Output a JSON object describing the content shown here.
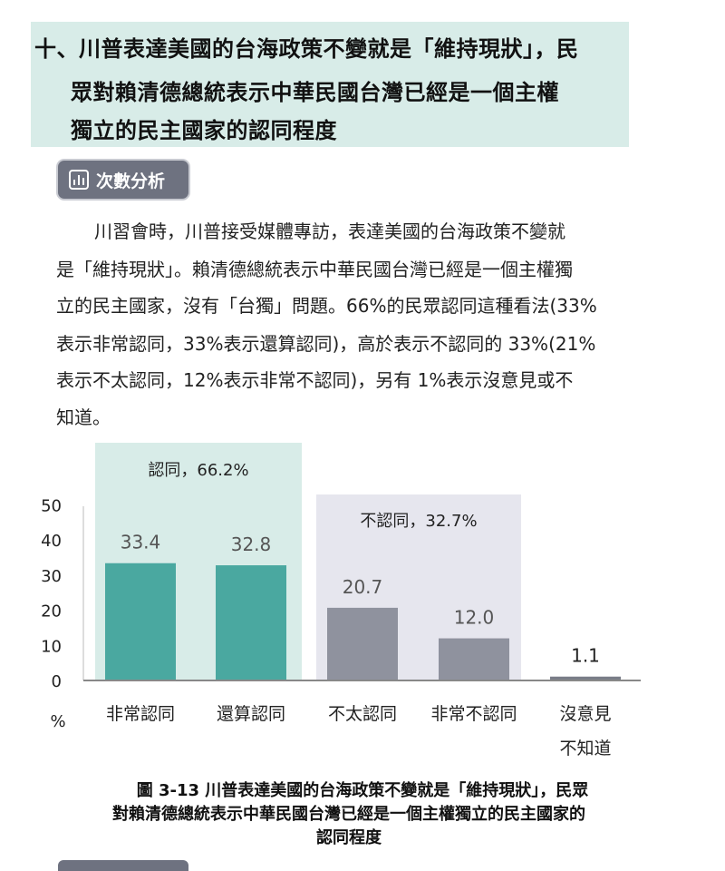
{
  "section": {
    "heading_lines": [
      "十、川普表達美國的台海政策不變就是「維持現狀」，民",
      "眾對賴清德總統表示中華民國台灣已經是一個主權",
      "獨立的民主國家的認同程度"
    ],
    "badge_label": "次數分析"
  },
  "paragraph_lines": [
    "川習會時，川普接受媒體專訪，表達美國的台海政策不變就",
    "是「維持現狀」。賴清德總統表示中華民國台灣已經是一個主權獨",
    "立的民主國家，沒有「台獨」問題。66%的民眾認同這種看法(33%",
    "表示非常認同，33%表示還算認同)，高於表示不認同的 33%(21%",
    "表示不太認同，12%表示非常不認同)，另有 1%表示沒意見或不",
    "知道。"
  ],
  "chart_data": {
    "type": "bar",
    "categories": [
      [
        "非常認同"
      ],
      [
        "還算認同"
      ],
      [
        "不太認同"
      ],
      [
        "非常不認同"
      ],
      [
        "沒意見",
        "不知道"
      ]
    ],
    "values": [
      33.4,
      32.8,
      20.7,
      12.0,
      1.1
    ],
    "value_labels": [
      "33.4",
      "32.8",
      "20.7",
      "12.0",
      "1.1"
    ],
    "yticks": [
      "0",
      "10",
      "20",
      "30",
      "40",
      "50"
    ],
    "ylim": [
      0,
      50
    ],
    "ylabel": "%",
    "groups": [
      {
        "label": "認同，66.2%",
        "members": [
          0,
          1
        ]
      },
      {
        "label": "不認同，32.7%",
        "members": [
          2,
          3
        ]
      }
    ],
    "colors": {
      "agree_bar": "#4aa8a0",
      "disagree_bar": "#8f929e",
      "neutral_bar": "#7a7d88",
      "agree_bg": "#d8ece8",
      "disagree_bg": "#e6e6ee",
      "baseline": "#888888"
    }
  },
  "figure_caption_lines": [
    "圖 3-13  川普表達美國的台海政策不變就是「維持現狀」，民眾",
    "對賴清德總統表示中華民國台灣已經是一個主權獨立的民主國家的",
    "認同程度"
  ]
}
